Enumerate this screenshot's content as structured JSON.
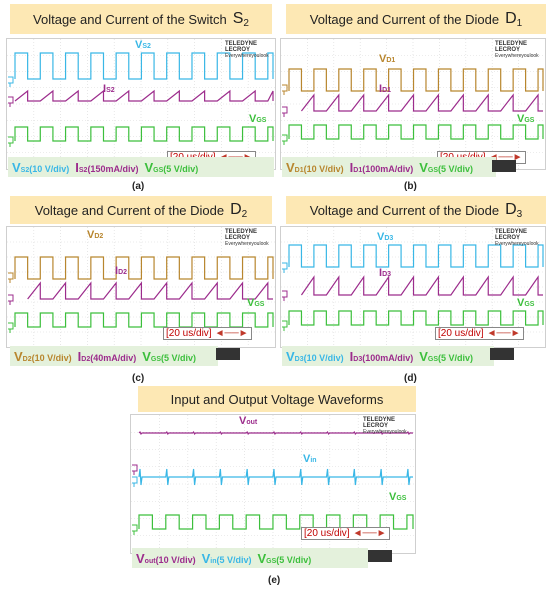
{
  "colors": {
    "title_bg": "#fde8b4",
    "legend_bg": "#e4f1dc",
    "v_cyan": "#39b7e6",
    "i_purple": "#9c2c8c",
    "vgs_green": "#3cbf3c",
    "vd_brown": "#b8862e",
    "div_red": "#c00000"
  },
  "logo": {
    "brand": "TELEDYNE LECROY",
    "tagline": "Everywhereyoulook"
  },
  "time_div": "[20 us/div]",
  "panels": [
    {
      "title": "Voltage and Current of the Switch",
      "title_sub_main": "S",
      "title_sub_idx": "2",
      "caption": "(a)",
      "labels": {
        "v_main": "V",
        "v_sub": "S2",
        "i_main": "I",
        "i_sub": "S2",
        "g_main": "V",
        "g_sub": "GS"
      },
      "legend": [
        {
          "main": "V",
          "sub": "S2",
          "rest": "(10 V/div)"
        },
        {
          "main": "I",
          "sub": "S2",
          "rest": "(150mA/div)"
        },
        {
          "main": "V",
          "sub": "GS",
          "rest": "(5 V/div)"
        }
      ]
    },
    {
      "title": "Voltage and Current of the Diode",
      "title_sub_main": "D",
      "title_sub_idx": "1",
      "caption": "(b)",
      "labels": {
        "v_main": "V",
        "v_sub": "D1",
        "i_main": "I",
        "i_sub": "D1",
        "g_main": "V",
        "g_sub": "GS"
      },
      "legend": [
        {
          "main": "V",
          "sub": "D1",
          "rest": "(10 V/div)"
        },
        {
          "main": "I",
          "sub": "D1",
          "rest": "(100mA/div)"
        },
        {
          "main": "V",
          "sub": "GS",
          "rest": "(5 V/div)"
        }
      ]
    },
    {
      "title": "Voltage and Current of the Diode",
      "title_sub_main": "D",
      "title_sub_idx": "2",
      "caption": "(c)",
      "labels": {
        "v_main": "V",
        "v_sub": "D2",
        "i_main": "I",
        "i_sub": "D2",
        "g_main": "V",
        "g_sub": "GS"
      },
      "legend": [
        {
          "main": "V",
          "sub": "D2",
          "rest": "(10 V/div)"
        },
        {
          "main": "I",
          "sub": "D2",
          "rest": "(40mA/div)"
        },
        {
          "main": "V",
          "sub": "GS",
          "rest": "(5 V/div)"
        }
      ]
    },
    {
      "title": "Voltage and Current of the Diode",
      "title_sub_main": "D",
      "title_sub_idx": "3",
      "caption": "(d)",
      "labels": {
        "v_main": "V",
        "v_sub": "D3",
        "i_main": "I",
        "i_sub": "D3",
        "g_main": "V",
        "g_sub": "GS"
      },
      "legend": [
        {
          "main": "V",
          "sub": "D3",
          "rest": "(10 V/div)"
        },
        {
          "main": "I",
          "sub": "D3",
          "rest": "(100mA/div)"
        },
        {
          "main": "V",
          "sub": "GS",
          "rest": "(5 V/div)"
        }
      ]
    },
    {
      "title": "Input and Output Voltage Waveforms",
      "title_sub_main": "",
      "title_sub_idx": "",
      "caption": "(e)",
      "labels": {
        "v_main": "V",
        "v_sub": "out",
        "i_main": "V",
        "i_sub": "in",
        "g_main": "V",
        "g_sub": "GS"
      },
      "legend": [
        {
          "main": "V",
          "sub": "out",
          "rest": "(10 V/div)"
        },
        {
          "main": "V",
          "sub": "in",
          "rest": "(5 V/div)"
        },
        {
          "main": "V",
          "sub": "GS",
          "rest": "(5 V/div)"
        }
      ]
    }
  ]
}
